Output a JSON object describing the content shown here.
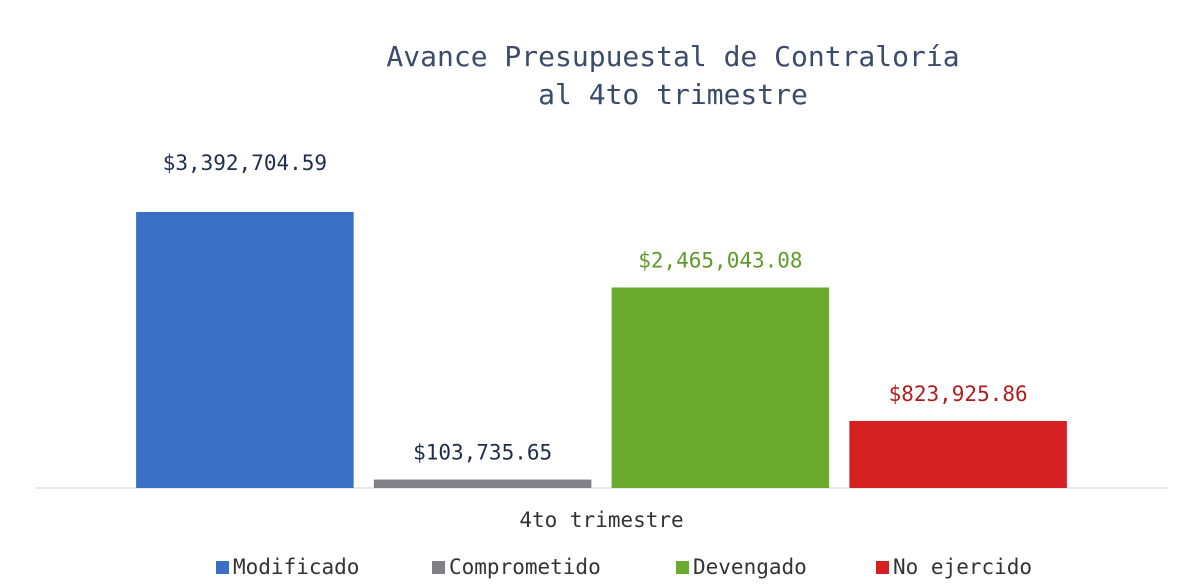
{
  "chart_data": {
    "type": "bar",
    "title": [
      "Avance Presupuestal de Contraloría",
      "al 4to trimestre"
    ],
    "categories": [
      "4to trimestre"
    ],
    "series": [
      {
        "name": "Modificado",
        "color": "#3a70c4",
        "label_color": "#1f2d4d",
        "values": [
          3392704.59
        ],
        "value_labels": [
          "$3,392,704.59"
        ]
      },
      {
        "name": "Comprometido",
        "color": "#808086",
        "label_color": "#1f2d4d",
        "values": [
          103735.65
        ],
        "value_labels": [
          "$103,735.65"
        ]
      },
      {
        "name": "Devengado",
        "color": "#6aaa2e",
        "label_color": "#5f9a2a",
        "values": [
          2465043.08
        ],
        "value_labels": [
          "$2,465,043.08"
        ]
      },
      {
        "name": "No ejercido",
        "color": "#d42020",
        "label_color": "#b01c1c",
        "values": [
          823925.86
        ],
        "value_labels": [
          "$823,925.86"
        ]
      }
    ],
    "legend": "bottom"
  }
}
